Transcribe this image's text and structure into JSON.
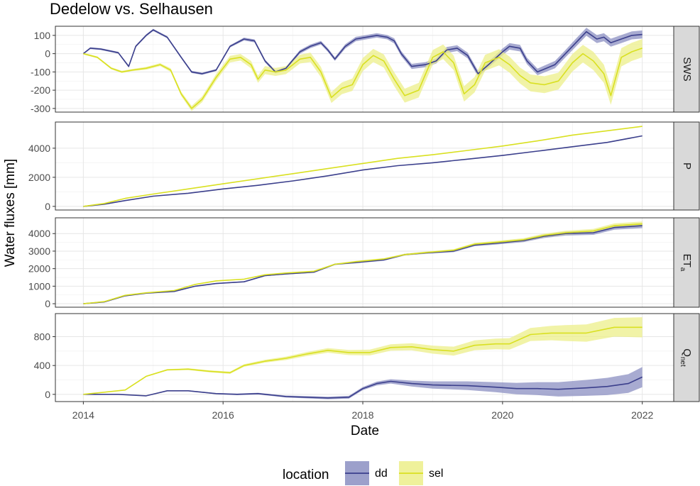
{
  "chart_data": {
    "type": "line",
    "title": "Dedelow vs. Selhausen",
    "xlabel": "Date",
    "ylabel": "Water fluxes [mm]",
    "x_ticks": [
      "2014",
      "2016",
      "2018",
      "2020",
      "2022"
    ],
    "legend": {
      "title": "location",
      "position": "bottom",
      "entries": [
        {
          "name": "dd",
          "color": "#3b3f8c"
        },
        {
          "name": "sel",
          "color": "#d9e021"
        }
      ]
    },
    "colors": {
      "dd": "#3b3f8c",
      "sel": "#d9e021",
      "dd_band": "#8b8fc2",
      "sel_band": "#ecef8a"
    },
    "facets": [
      {
        "strip": "SWS",
        "ylim": [
          -320,
          150
        ],
        "y_ticks": [
          100,
          0,
          -100,
          -200,
          -300
        ],
        "y_tick_labels": [
          "100",
          "0",
          "-100",
          "-200",
          "-300"
        ],
        "series": [
          {
            "name": "dd",
            "x": [
              2014.0,
              2014.1,
              2014.25,
              2014.5,
              2014.65,
              2014.75,
              2014.9,
              2015.0,
              2015.1,
              2015.2,
              2015.4,
              2015.55,
              2015.7,
              2015.9,
              2016.1,
              2016.3,
              2016.45,
              2016.6,
              2016.75,
              2016.9,
              2017.1,
              2017.25,
              2017.4,
              2017.5,
              2017.6,
              2017.75,
              2017.9,
              2018.05,
              2018.2,
              2018.35,
              2018.45,
              2018.55,
              2018.7,
              2018.9,
              2019.05,
              2019.2,
              2019.35,
              2019.5,
              2019.65,
              2019.8,
              2020.0,
              2020.1,
              2020.25,
              2020.35,
              2020.5,
              2020.75,
              2020.9,
              2021.05,
              2021.2,
              2021.35,
              2021.45,
              2021.55,
              2021.7,
              2021.85,
              2022.0
            ],
            "y": [
              0,
              30,
              25,
              5,
              -70,
              40,
              100,
              130,
              110,
              90,
              -20,
              -100,
              -110,
              -90,
              40,
              80,
              70,
              -40,
              -100,
              -80,
              10,
              40,
              60,
              20,
              -30,
              40,
              80,
              90,
              100,
              90,
              70,
              0,
              -70,
              -60,
              -40,
              20,
              30,
              -10,
              -110,
              -60,
              10,
              40,
              30,
              -40,
              -100,
              -60,
              0,
              60,
              120,
              80,
              90,
              60,
              80,
              100,
              105
            ],
            "band": [
              4,
              5,
              5,
              5,
              6,
              6,
              6,
              6,
              6,
              6,
              6,
              6,
              6,
              6,
              6,
              8,
              8,
              8,
              8,
              8,
              10,
              10,
              10,
              10,
              10,
              12,
              12,
              12,
              12,
              12,
              14,
              14,
              14,
              14,
              14,
              16,
              16,
              16,
              16,
              16,
              18,
              18,
              18,
              18,
              18,
              20,
              20,
              22,
              22,
              22,
              22,
              22,
              22,
              22,
              22
            ]
          },
          {
            "name": "sel",
            "x": [
              2014.0,
              2014.2,
              2014.4,
              2014.55,
              2014.7,
              2014.9,
              2015.1,
              2015.25,
              2015.4,
              2015.55,
              2015.7,
              2015.9,
              2016.1,
              2016.25,
              2016.4,
              2016.5,
              2016.6,
              2016.75,
              2016.9,
              2017.1,
              2017.25,
              2017.4,
              2017.55,
              2017.7,
              2017.85,
              2018.0,
              2018.15,
              2018.3,
              2018.45,
              2018.6,
              2018.8,
              2019.0,
              2019.15,
              2019.3,
              2019.45,
              2019.6,
              2019.75,
              2019.95,
              2020.1,
              2020.25,
              2020.4,
              2020.6,
              2020.8,
              2021.0,
              2021.15,
              2021.3,
              2021.45,
              2021.55,
              2021.7,
              2021.85,
              2022.0
            ],
            "y": [
              0,
              -20,
              -80,
              -100,
              -90,
              -80,
              -60,
              -90,
              -220,
              -300,
              -250,
              -130,
              -30,
              -20,
              -60,
              -140,
              -90,
              -100,
              -90,
              -30,
              -20,
              -100,
              -240,
              -190,
              -170,
              -60,
              -10,
              -40,
              -140,
              -230,
              -200,
              -20,
              10,
              -50,
              -220,
              -170,
              -50,
              -20,
              -60,
              -120,
              -160,
              -170,
              -150,
              -50,
              0,
              -40,
              -110,
              -230,
              -20,
              10,
              30
            ],
            "band": [
              5,
              5,
              6,
              6,
              6,
              8,
              8,
              10,
              12,
              14,
              16,
              18,
              18,
              18,
              20,
              20,
              22,
              22,
              22,
              24,
              26,
              28,
              30,
              32,
              34,
              36,
              36,
              36,
              38,
              38,
              40,
              40,
              40,
              40,
              42,
              42,
              44,
              44,
              44,
              44,
              46,
              46,
              46,
              48,
              48,
              50,
              50,
              50,
              50,
              50,
              50
            ]
          }
        ]
      },
      {
        "strip": "P",
        "ylim": [
          -250,
          5800
        ],
        "y_ticks": [
          4000,
          2000,
          0
        ],
        "y_tick_labels": [
          "4000",
          "2000",
          "0"
        ],
        "series": [
          {
            "name": "dd",
            "x": [
              2014.0,
              2014.3,
              2014.6,
              2015.0,
              2015.5,
              2016.0,
              2016.5,
              2017.0,
              2017.5,
              2018.0,
              2018.5,
              2019.0,
              2019.5,
              2020.0,
              2020.5,
              2021.0,
              2021.5,
              2022.0
            ],
            "y": [
              0,
              150,
              400,
              700,
              900,
              1200,
              1450,
              1750,
              2100,
              2500,
              2800,
              3000,
              3250,
              3500,
              3800,
              4100,
              4400,
              4850
            ],
            "band": [
              0,
              0,
              0,
              0,
              0,
              0,
              0,
              0,
              0,
              0,
              0,
              0,
              0,
              0,
              0,
              0,
              0,
              0
            ]
          },
          {
            "name": "sel",
            "x": [
              2014.0,
              2014.3,
              2014.6,
              2015.0,
              2015.5,
              2016.0,
              2016.5,
              2017.0,
              2017.5,
              2018.0,
              2018.5,
              2019.0,
              2019.5,
              2020.0,
              2020.5,
              2021.0,
              2021.5,
              2022.0
            ],
            "y": [
              0,
              200,
              550,
              850,
              1200,
              1550,
              1900,
              2250,
              2600,
              2950,
              3300,
              3550,
              3850,
              4150,
              4500,
              4900,
              5200,
              5500
            ],
            "band": [
              0,
              0,
              0,
              0,
              0,
              0,
              0,
              0,
              0,
              0,
              0,
              0,
              0,
              0,
              0,
              0,
              0,
              0
            ]
          }
        ]
      },
      {
        "strip": "ETa",
        "strip_main": "ET",
        "strip_sub": "a",
        "ylim": [
          -200,
          4900
        ],
        "y_ticks": [
          4000,
          3000,
          2000,
          1000,
          0
        ],
        "y_tick_labels": [
          "4000",
          "3000",
          "2000",
          "1000",
          "0"
        ],
        "series": [
          {
            "name": "dd",
            "x": [
              2014.0,
              2014.3,
              2014.6,
              2014.9,
              2015.3,
              2015.6,
              2015.9,
              2016.3,
              2016.6,
              2016.9,
              2017.3,
              2017.6,
              2017.9,
              2018.3,
              2018.6,
              2018.9,
              2019.3,
              2019.6,
              2019.9,
              2020.3,
              2020.6,
              2020.9,
              2021.3,
              2021.6,
              2022.0
            ],
            "y": [
              0,
              100,
              450,
              600,
              700,
              1000,
              1150,
              1250,
              1600,
              1700,
              1800,
              2250,
              2350,
              2500,
              2800,
              2900,
              3000,
              3350,
              3450,
              3600,
              3850,
              4000,
              4050,
              4350,
              4450
            ],
            "band": [
              10,
              12,
              15,
              18,
              20,
              25,
              28,
              30,
              32,
              35,
              38,
              40,
              45,
              48,
              50,
              55,
              60,
              70,
              80,
              90,
              100,
              110,
              120,
              130,
              140
            ]
          },
          {
            "name": "sel",
            "x": [
              2014.0,
              2014.3,
              2014.6,
              2014.9,
              2015.3,
              2015.6,
              2015.9,
              2016.3,
              2016.6,
              2016.9,
              2017.3,
              2017.6,
              2017.9,
              2018.3,
              2018.6,
              2018.9,
              2019.3,
              2019.6,
              2019.9,
              2020.3,
              2020.6,
              2020.9,
              2021.3,
              2021.6,
              2022.0
            ],
            "y": [
              0,
              120,
              480,
              620,
              750,
              1100,
              1300,
              1400,
              1650,
              1750,
              1850,
              2250,
              2400,
              2550,
              2800,
              2920,
              3050,
              3400,
              3500,
              3650,
              3900,
              4050,
              4150,
              4450,
              4550
            ],
            "band": [
              10,
              12,
              15,
              18,
              20,
              25,
              28,
              30,
              32,
              35,
              38,
              40,
              45,
              48,
              50,
              55,
              60,
              70,
              80,
              90,
              100,
              110,
              120,
              130,
              140
            ]
          }
        ]
      },
      {
        "strip": "Qnet",
        "strip_main": "Q",
        "strip_sub": "net",
        "ylim": [
          -100,
          1120
        ],
        "y_ticks": [
          800,
          400,
          0
        ],
        "y_tick_labels": [
          "800",
          "400",
          "0"
        ],
        "series": [
          {
            "name": "dd",
            "x": [
              2014.0,
              2014.5,
              2014.9,
              2015.2,
              2015.5,
              2015.9,
              2016.2,
              2016.5,
              2016.9,
              2017.2,
              2017.5,
              2017.8,
              2018.0,
              2018.2,
              2018.4,
              2018.7,
              2019.0,
              2019.5,
              2019.9,
              2020.2,
              2020.5,
              2020.8,
              2021.2,
              2021.5,
              2021.8,
              2022.0
            ],
            "y": [
              0,
              0,
              -20,
              50,
              50,
              10,
              0,
              10,
              -30,
              -40,
              -50,
              -40,
              80,
              150,
              180,
              150,
              130,
              120,
              100,
              80,
              80,
              70,
              90,
              110,
              150,
              240
            ],
            "band": [
              0,
              2,
              4,
              5,
              6,
              8,
              10,
              12,
              14,
              16,
              18,
              20,
              22,
              26,
              30,
              40,
              50,
              60,
              70,
              80,
              90,
              100,
              110,
              120,
              130,
              140
            ]
          },
          {
            "name": "sel",
            "x": [
              2014.0,
              2014.3,
              2014.6,
              2014.9,
              2015.2,
              2015.5,
              2015.8,
              2016.1,
              2016.3,
              2016.6,
              2016.9,
              2017.2,
              2017.5,
              2017.8,
              2018.1,
              2018.4,
              2018.7,
              2019.0,
              2019.3,
              2019.6,
              2019.9,
              2020.1,
              2020.4,
              2020.7,
              2020.9,
              2021.2,
              2021.6,
              2022.0
            ],
            "y": [
              0,
              30,
              60,
              250,
              340,
              350,
              320,
              300,
              400,
              460,
              500,
              560,
              610,
              580,
              580,
              650,
              660,
              620,
              600,
              680,
              700,
              700,
              830,
              850,
              850,
              850,
              930,
              930
            ],
            "band": [
              2,
              4,
              6,
              8,
              10,
              12,
              14,
              16,
              18,
              20,
              24,
              28,
              32,
              36,
              40,
              44,
              50,
              56,
              62,
              68,
              74,
              80,
              90,
              100,
              110,
              120,
              130,
              140
            ]
          }
        ]
      }
    ]
  }
}
